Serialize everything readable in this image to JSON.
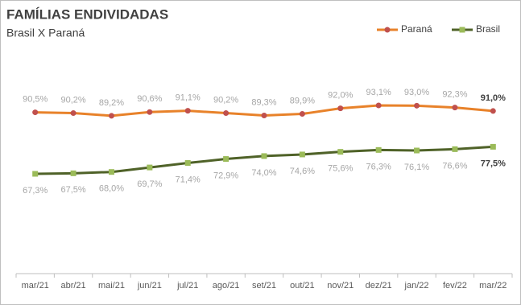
{
  "chart_data": {
    "type": "line",
    "title": "FAMÍLIAS ENDIVIDADAS",
    "subtitle": "Brasil X Paraná",
    "categories": [
      "mar/21",
      "abr/21",
      "mai/21",
      "jun/21",
      "jul/21",
      "ago/21",
      "set/21",
      "out/21",
      "nov/21",
      "dez/21",
      "jan/22",
      "fev/22",
      "mar/22"
    ],
    "series": [
      {
        "name": "Paraná",
        "color": "#e8822a",
        "marker_color": "#c0504d",
        "values": [
          90.5,
          90.2,
          89.2,
          90.6,
          91.1,
          90.2,
          89.3,
          89.9,
          92.0,
          93.1,
          93.0,
          92.3,
          91.0
        ],
        "value_labels": [
          "90,5%",
          "90,2%",
          "89,2%",
          "90,6%",
          "91,1%",
          "90,2%",
          "89,3%",
          "89,9%",
          "92,0%",
          "93,1%",
          "93,0%",
          "92,3%",
          "91,0%"
        ]
      },
      {
        "name": "Brasil",
        "color": "#4f6228",
        "marker_color": "#9bbb59",
        "values": [
          67.3,
          67.5,
          68.0,
          69.7,
          71.4,
          72.9,
          74.0,
          74.6,
          75.6,
          76.3,
          76.1,
          76.6,
          77.5
        ],
        "value_labels": [
          "67,3%",
          "67,5%",
          "68,0%",
          "69,7%",
          "71,4%",
          "72,9%",
          "74,0%",
          "74,6%",
          "75,6%",
          "76,3%",
          "76,1%",
          "76,6%",
          "77,5%"
        ]
      }
    ],
    "legend": "top-right"
  }
}
